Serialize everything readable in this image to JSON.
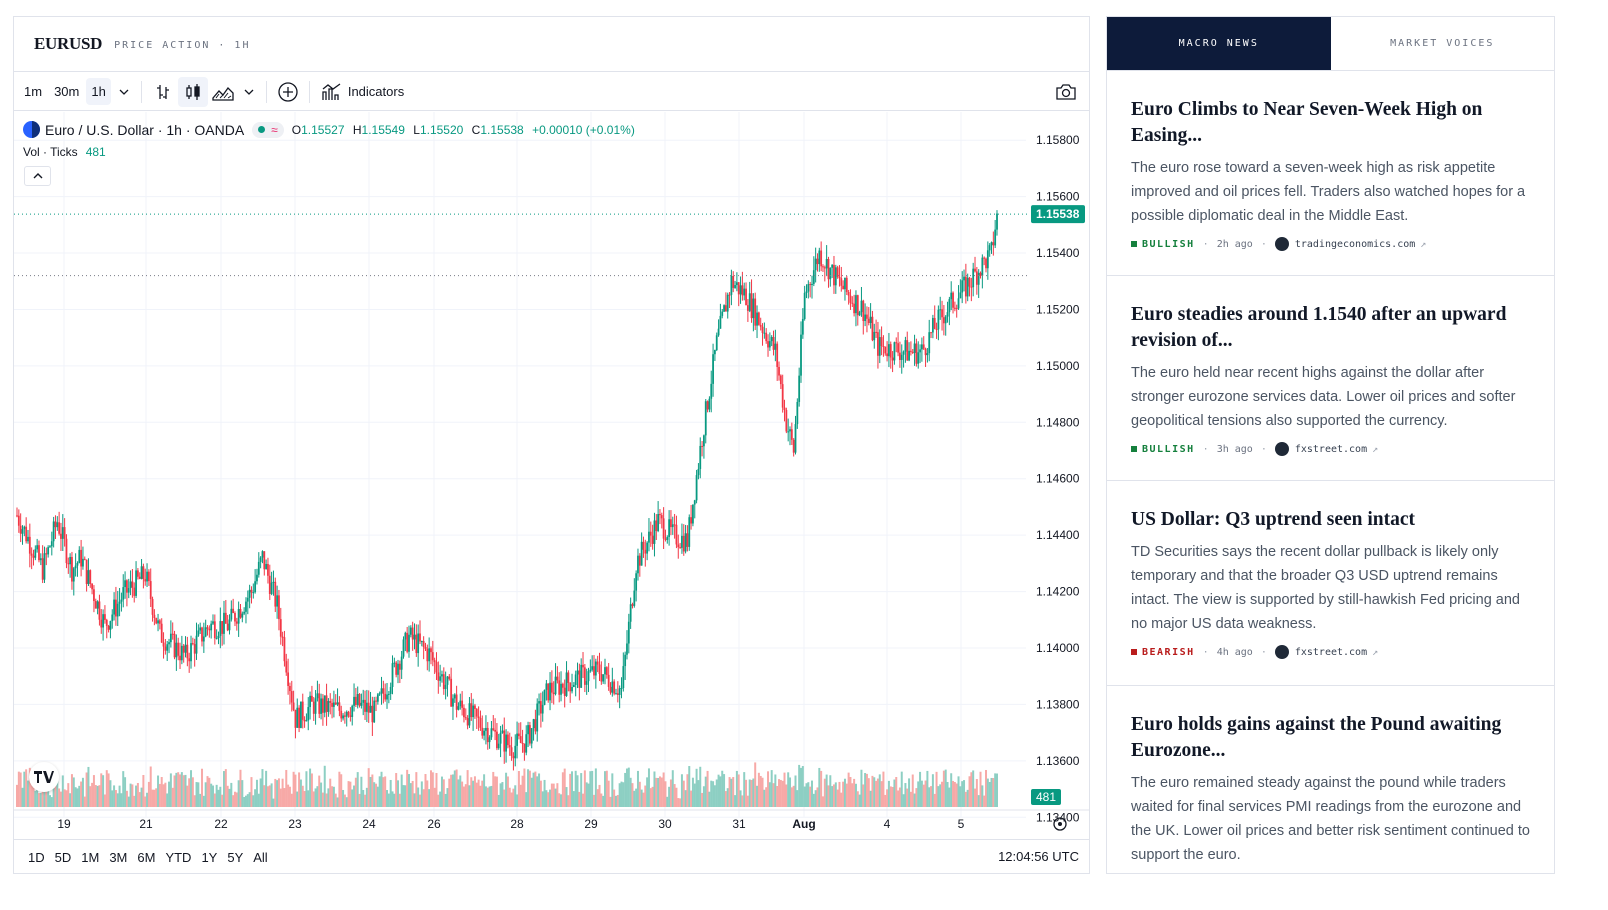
{
  "header": {
    "symbol": "EURUSD",
    "subtitle": "PRICE ACTION · 1H"
  },
  "toolbar": {
    "timeframes": [
      "1m",
      "30m",
      "1h"
    ],
    "active_timeframe": "1h",
    "indicators_label": "Indicators"
  },
  "legend": {
    "instrument": "Euro / U.S. Dollar · 1h · OANDA",
    "open_label": "O",
    "open": "1.15527",
    "high_label": "H",
    "high": "1.15549",
    "low_label": "L",
    "low": "1.15520",
    "close_label": "C",
    "close": "1.15538",
    "change": "+0.00010 (+0.01%)",
    "vol_label": "Vol · Ticks",
    "vol_value": "481"
  },
  "colors": {
    "up": "#089981",
    "down": "#f23645",
    "vol_up": "#8dcfc3",
    "vol_down": "#f7a9a7",
    "news_tab": "#0d1b3a"
  },
  "chart_data": {
    "type": "candlestick",
    "price_axis": [
      "1.15800",
      "1.15600",
      "1.15400",
      "1.15200",
      "1.15000",
      "1.14800",
      "1.14600",
      "1.14400",
      "1.14200",
      "1.14000",
      "1.13800",
      "1.13600",
      "1.13400"
    ],
    "x_labels": [
      "19",
      "21",
      "22",
      "23",
      "24",
      "26",
      "28",
      "29",
      "30",
      "31",
      "Aug",
      "4",
      "5"
    ],
    "last_price": "1.15538",
    "last_volume": "481",
    "ylim": [
      1.1333,
      1.159
    ],
    "ref_line": 1.1532,
    "anchors": [
      [
        0,
        1.1447
      ],
      [
        14,
        1.1428
      ],
      [
        22,
        1.1445
      ],
      [
        30,
        1.1428
      ],
      [
        35,
        1.1432
      ],
      [
        48,
        1.1408
      ],
      [
        58,
        1.1419
      ],
      [
        70,
        1.1426
      ],
      [
        78,
        1.1405
      ],
      [
        92,
        1.1397
      ],
      [
        105,
        1.1408
      ],
      [
        115,
        1.1408
      ],
      [
        128,
        1.142
      ],
      [
        134,
        1.1432
      ],
      [
        142,
        1.1415
      ],
      [
        152,
        1.1375
      ],
      [
        162,
        1.138
      ],
      [
        176,
        1.1378
      ],
      [
        186,
        1.138
      ],
      [
        195,
        1.1377
      ],
      [
        205,
        1.1391
      ],
      [
        214,
        1.1404
      ],
      [
        225,
        1.1398
      ],
      [
        240,
        1.138
      ],
      [
        255,
        1.1372
      ],
      [
        270,
        1.1365
      ],
      [
        278,
        1.1367
      ],
      [
        290,
        1.1385
      ],
      [
        305,
        1.1389
      ],
      [
        318,
        1.1392
      ],
      [
        330,
        1.1385
      ],
      [
        338,
        1.143
      ],
      [
        350,
        1.1445
      ],
      [
        358,
        1.144
      ],
      [
        366,
        1.1438
      ],
      [
        374,
        1.1475
      ],
      [
        382,
        1.1508
      ],
      [
        390,
        1.153
      ],
      [
        398,
        1.1525
      ],
      [
        406,
        1.1515
      ],
      [
        414,
        1.1505
      ],
      [
        420,
        1.148
      ],
      [
        424,
        1.147
      ],
      [
        430,
        1.1525
      ],
      [
        438,
        1.154
      ],
      [
        446,
        1.1532
      ],
      [
        454,
        1.1525
      ],
      [
        462,
        1.152
      ],
      [
        470,
        1.1507
      ],
      [
        478,
        1.1506
      ],
      [
        486,
        1.1505
      ],
      [
        494,
        1.1505
      ],
      [
        502,
        1.1515
      ],
      [
        510,
        1.1522
      ],
      [
        518,
        1.1528
      ],
      [
        526,
        1.1535
      ],
      [
        532,
        1.154
      ],
      [
        535,
        1.1554
      ]
    ]
  },
  "ranges": [
    "1D",
    "5D",
    "1M",
    "3M",
    "6M",
    "YTD",
    "1Y",
    "5Y",
    "All"
  ],
  "clock": "12:04:56 UTC",
  "news": {
    "tabs": [
      "MACRO NEWS",
      "MARKET VOICES"
    ],
    "articles": [
      {
        "title": "Euro Climbs to Near Seven-Week High on Easing...",
        "body": "The euro rose toward a seven-week high as risk appetite improved and oil prices fell. Traders also watched hopes for a possible diplomatic deal in the Middle East.",
        "sentiment": "BULLISH",
        "time": "2h ago",
        "source": "tradingeconomics.com"
      },
      {
        "title": "Euro steadies around 1.1540 after an upward revision of...",
        "body": "The euro held near recent highs against the dollar after stronger eurozone services data. Lower oil prices and softer geopolitical tensions also supported the currency.",
        "sentiment": "BULLISH",
        "time": "3h ago",
        "source": "fxstreet.com"
      },
      {
        "title": "US Dollar: Q3 uptrend seen intact",
        "body": "TD Securities says the recent dollar pullback is likely only temporary and that the broader Q3 USD uptrend remains intact. The view is supported by still-hawkish Fed pricing and no major US data weakness.",
        "sentiment": "BEARISH",
        "time": "4h ago",
        "source": "fxstreet.com"
      },
      {
        "title": "Euro holds gains against the Pound awaiting Eurozone...",
        "body": "The euro remained steady against the pound while traders waited for final services PMI readings from the eurozone and the UK. Lower oil prices and better risk sentiment continued to support the euro."
      }
    ]
  }
}
